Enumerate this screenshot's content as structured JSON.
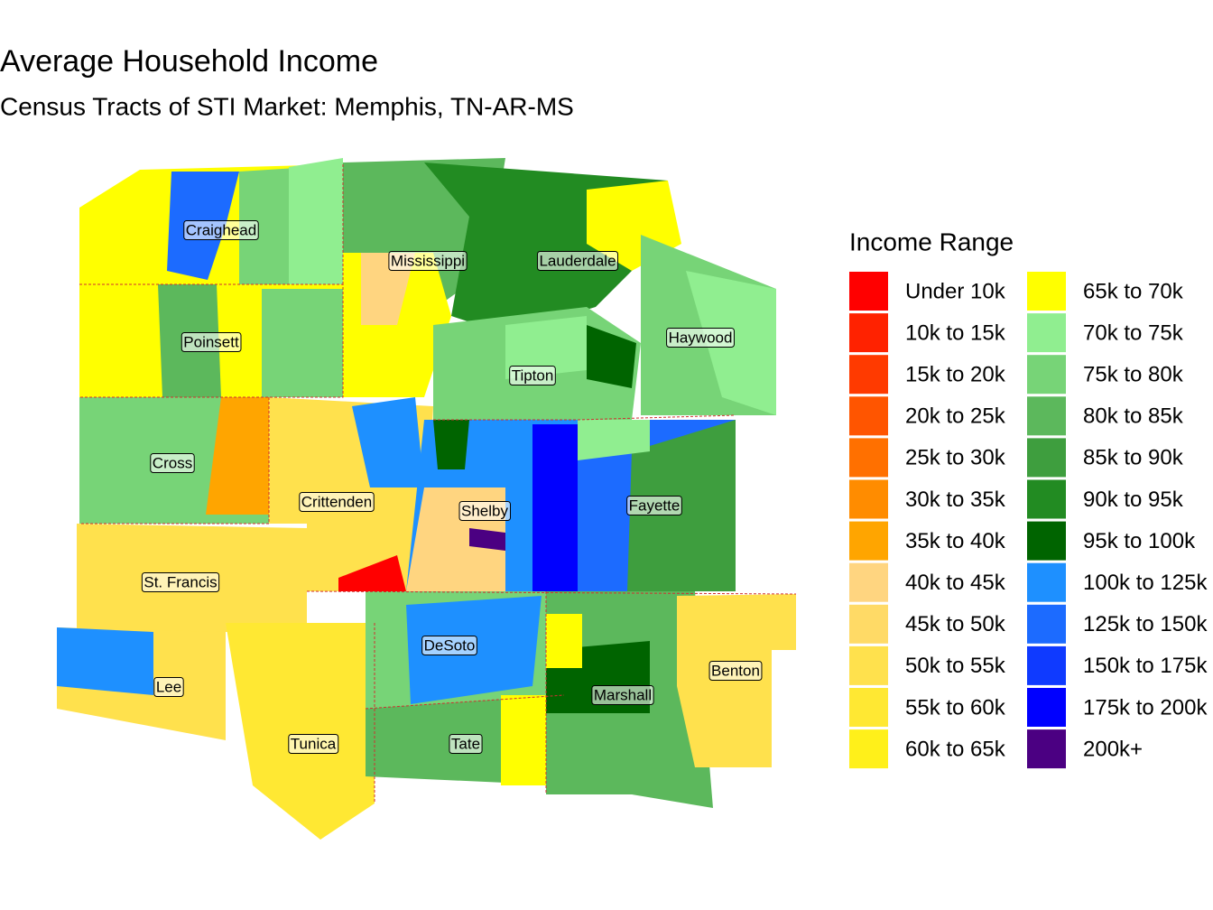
{
  "title": "Average Household Income",
  "subtitle": "Census Tracts of STI Market: Memphis, TN-AR-MS",
  "legend": {
    "title": "Income Range",
    "items": [
      {
        "label": "Under 10k",
        "color": "#FF0000"
      },
      {
        "label": "10k to 15k",
        "color": "#FF2200"
      },
      {
        "label": "15k to 20k",
        "color": "#FF3A00"
      },
      {
        "label": "20k to 25k",
        "color": "#FF5500"
      },
      {
        "label": "25k to 30k",
        "color": "#FF7000"
      },
      {
        "label": "30k to 35k",
        "color": "#FF8C00"
      },
      {
        "label": "35k to 40k",
        "color": "#FFA500"
      },
      {
        "label": "40k to 45k",
        "color": "#FFD580"
      },
      {
        "label": "45k to 50k",
        "color": "#FFDA66"
      },
      {
        "label": "50k to 55k",
        "color": "#FFE14D"
      },
      {
        "label": "55k to 60k",
        "color": "#FFE833"
      },
      {
        "label": "60k to 65k",
        "color": "#FFF01A"
      },
      {
        "label": "65k to 70k",
        "color": "#FFFF00"
      },
      {
        "label": "70k to 75k",
        "color": "#90EE90"
      },
      {
        "label": "75k to 80k",
        "color": "#77D477"
      },
      {
        "label": "80k to 85k",
        "color": "#5CB85C"
      },
      {
        "label": "85k to 90k",
        "color": "#3E9E3E"
      },
      {
        "label": "90k to 95k",
        "color": "#228B22"
      },
      {
        "label": "95k to 100k",
        "color": "#006400"
      },
      {
        "label": "100k to 125k",
        "color": "#1E90FF"
      },
      {
        "label": "125k to 150k",
        "color": "#1C6BFF"
      },
      {
        "label": "150k to 175k",
        "color": "#0F3AFF"
      },
      {
        "label": "175k to 200k",
        "color": "#0000FF"
      },
      {
        "label": "200k+",
        "color": "#4B0082"
      }
    ]
  },
  "counties": [
    {
      "name": "Craighead"
    },
    {
      "name": "Mississippi"
    },
    {
      "name": "Lauderdale"
    },
    {
      "name": "Poinsett"
    },
    {
      "name": "Haywood"
    },
    {
      "name": "Tipton"
    },
    {
      "name": "Cross"
    },
    {
      "name": "Crittenden"
    },
    {
      "name": "Shelby"
    },
    {
      "name": "Fayette"
    },
    {
      "name": "St. Francis"
    },
    {
      "name": "DeSoto"
    },
    {
      "name": "Benton"
    },
    {
      "name": "Lee"
    },
    {
      "name": "Marshall"
    },
    {
      "name": "Tunica"
    },
    {
      "name": "Tate"
    }
  ]
}
